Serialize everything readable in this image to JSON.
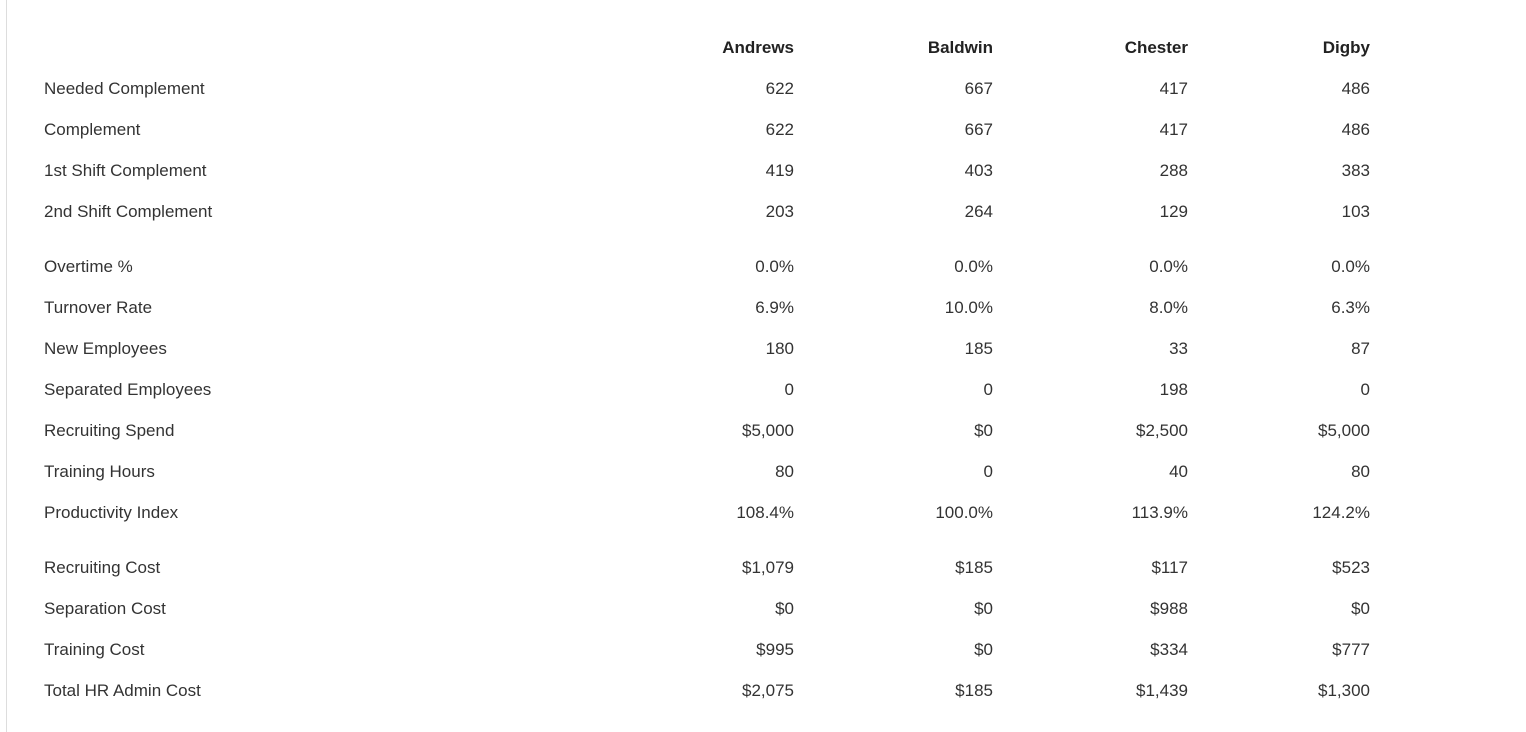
{
  "columns": [
    "",
    "Andrews",
    "Baldwin",
    "Chester",
    "Digby"
  ],
  "rows": [
    {
      "label": "Needed Complement",
      "values": [
        "622",
        "667",
        "417",
        "486"
      ],
      "group_start": false
    },
    {
      "label": "Complement",
      "values": [
        "622",
        "667",
        "417",
        "486"
      ],
      "group_start": false
    },
    {
      "label": "1st Shift Complement",
      "values": [
        "419",
        "403",
        "288",
        "383"
      ],
      "group_start": false
    },
    {
      "label": "2nd Shift Complement",
      "values": [
        "203",
        "264",
        "129",
        "103"
      ],
      "group_start": false
    },
    {
      "label": "Overtime %",
      "values": [
        "0.0%",
        "0.0%",
        "0.0%",
        "0.0%"
      ],
      "group_start": true
    },
    {
      "label": "Turnover Rate",
      "values": [
        "6.9%",
        "10.0%",
        "8.0%",
        "6.3%"
      ],
      "group_start": false
    },
    {
      "label": "New Employees",
      "values": [
        "180",
        "185",
        "33",
        "87"
      ],
      "group_start": false
    },
    {
      "label": "Separated Employees",
      "values": [
        "0",
        "0",
        "198",
        "0"
      ],
      "group_start": false
    },
    {
      "label": "Recruiting Spend",
      "values": [
        "$5,000",
        "$0",
        "$2,500",
        "$5,000"
      ],
      "group_start": false
    },
    {
      "label": "Training Hours",
      "values": [
        "80",
        "0",
        "40",
        "80"
      ],
      "group_start": false
    },
    {
      "label": "Productivity Index",
      "values": [
        "108.4%",
        "100.0%",
        "113.9%",
        "124.2%"
      ],
      "group_start": false
    },
    {
      "label": "Recruiting Cost",
      "values": [
        "$1,079",
        "$185",
        "$117",
        "$523"
      ],
      "group_start": true
    },
    {
      "label": "Separation Cost",
      "values": [
        "$0",
        "$0",
        "$988",
        "$0"
      ],
      "group_start": false
    },
    {
      "label": "Training Cost",
      "values": [
        "$995",
        "$0",
        "$334",
        "$777"
      ],
      "group_start": false
    },
    {
      "label": "Total HR Admin Cost",
      "values": [
        "$2,075",
        "$185",
        "$1,439",
        "$1,300"
      ],
      "group_start": false
    }
  ]
}
